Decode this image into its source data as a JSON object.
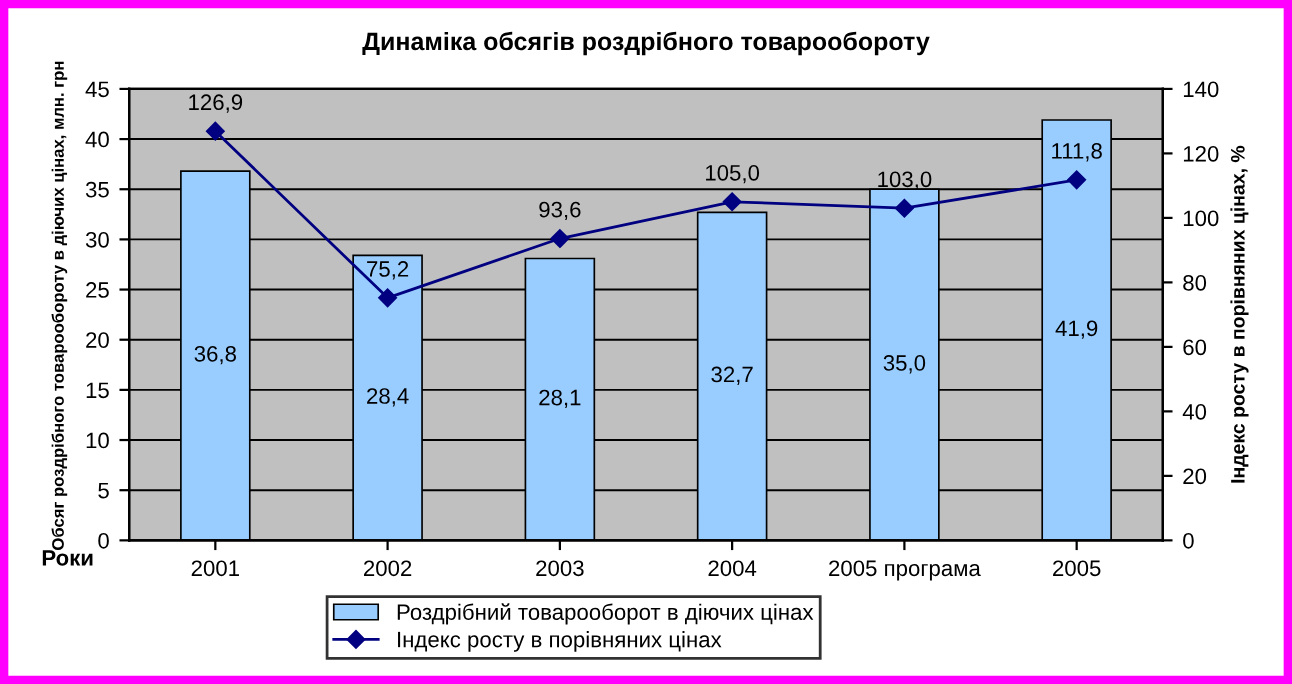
{
  "chart_data": {
    "type": "bar",
    "title": "Динаміка обсягів роздрібного товарообороту",
    "xlabel": "Роки",
    "ylabel": "Обсяг роздрібного товарообороту в діючих цінах, млн. грн",
    "y2label": "Індекс росту в порівняних цінах, %",
    "categories": [
      "2001",
      "2002",
      "2003",
      "2004",
      "2005 програма",
      "2005"
    ],
    "series": [
      {
        "name": "Роздрібний товарооборот в діючих цінах",
        "color": "#99ccff",
        "values": [
          36.8,
          28.4,
          28.1,
          32.7,
          35.0,
          41.9
        ],
        "value_labels": [
          "36,8",
          "28,4",
          "28,1",
          "32,7",
          "35,0",
          "41,9"
        ]
      },
      {
        "name": "Індекс росту в порівняних цінах",
        "type": "line",
        "axis": "y2",
        "color": "#000080",
        "marker": "diamond",
        "values": [
          126.9,
          75.2,
          93.6,
          105.0,
          103.0,
          111.8
        ],
        "value_labels": [
          "126,9",
          "75,2",
          "93,6",
          "105,0",
          "103,0",
          "111,8"
        ]
      }
    ],
    "ylim": [
      0,
      45
    ],
    "yticks": [
      0,
      5,
      10,
      15,
      20,
      25,
      30,
      35,
      40,
      45
    ],
    "y2lim": [
      0,
      140
    ],
    "y2ticks": [
      0,
      20,
      40,
      60,
      80,
      100,
      120,
      140
    ],
    "grid": "y",
    "legend": "bottom"
  }
}
